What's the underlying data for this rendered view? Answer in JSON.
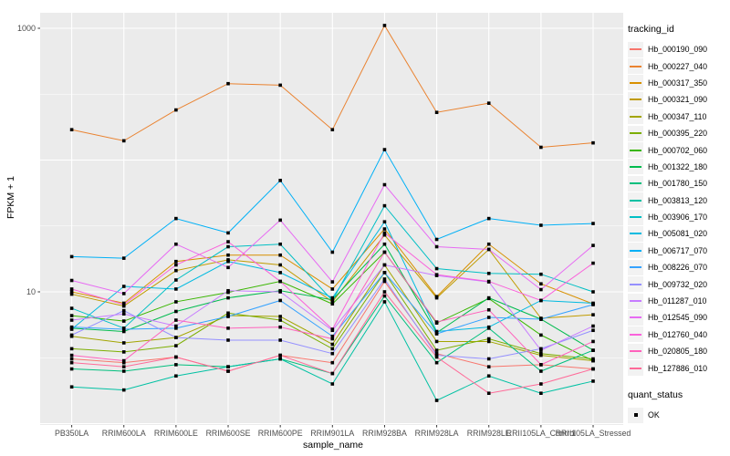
{
  "chart_data": {
    "type": "line",
    "title": "",
    "xlabel": "sample_name",
    "ylabel": "FPKM + 1",
    "y_scale": "log10",
    "ylim": [
      1,
      1500
    ],
    "y_tick_values": [
      10,
      1000
    ],
    "y_tick_labels": [
      "10",
      "1000"
    ],
    "y_grid_major": [
      1,
      10,
      100,
      1000
    ],
    "y_grid_minor": [
      3.162,
      31.62,
      316.2
    ],
    "grid_color": "#FFFFFF",
    "panel_bg": "#EBEBEB",
    "point_shape": "filled-square",
    "point_color": "#000000",
    "legend_position": "right",
    "categories": [
      "PB350LA",
      "RRIM600LA",
      "RRIM600LE",
      "RRIM600SE",
      "RRIM600PE",
      "RRIM901LA",
      "RRIM928BA",
      "RRIM928LA",
      "RRIM928LE",
      "RRII105LA_Control",
      "RRII105LA_Stressed"
    ],
    "series": [
      {
        "name": "Hb_000190_090",
        "color": "#F8766D",
        "values": [
          3.1,
          2.9,
          3.2,
          2.5,
          3.3,
          2.9,
          12,
          3.4,
          2.7,
          2.8,
          2.6
        ]
      },
      {
        "name": "Hb_000227_040",
        "color": "#EA8331",
        "values": [
          170,
          140,
          240,
          380,
          370,
          170,
          1050,
          230,
          270,
          125,
          135
        ]
      },
      {
        "name": "Hb_000317_350",
        "color": "#D89000",
        "values": [
          10,
          8.2,
          17,
          19,
          19,
          10.5,
          30,
          9.2,
          23,
          11.5,
          8.1
        ]
      },
      {
        "name": "Hb_000321_090",
        "color": "#C09B00",
        "values": [
          9.6,
          7.8,
          14.5,
          17.5,
          16,
          8.4,
          27,
          9.0,
          21,
          6.3,
          6.7
        ]
      },
      {
        "name": "Hb_000347_110",
        "color": "#A3A500",
        "values": [
          4.6,
          4.1,
          4.5,
          6.6,
          6.5,
          4.0,
          16,
          4.2,
          4.2,
          3.3,
          3.0
        ]
      },
      {
        "name": "Hb_000395_220",
        "color": "#7CAE00",
        "values": [
          3.7,
          3.5,
          3.9,
          6.9,
          6.1,
          3.7,
          14,
          3.6,
          4.4,
          3.4,
          3.1
        ]
      },
      {
        "name": "Hb_000702_060",
        "color": "#39B600",
        "values": [
          6.6,
          6.0,
          8.4,
          9.9,
          12,
          8.1,
          20,
          5.8,
          8.9,
          4.7,
          3.0
        ]
      },
      {
        "name": "Hb_001322_180",
        "color": "#00BB4E",
        "values": [
          5.3,
          5.0,
          7.1,
          9.0,
          10.2,
          8.7,
          23,
          4.9,
          9.0,
          6.2,
          3.6
        ]
      },
      {
        "name": "Hb_001780_150",
        "color": "#00BF7D",
        "values": [
          2.6,
          2.5,
          2.8,
          2.7,
          3.1,
          2.4,
          9.3,
          2.9,
          5.3,
          2.5,
          3.6
        ]
      },
      {
        "name": "Hb_003813_120",
        "color": "#00C1A3",
        "values": [
          1.9,
          1.8,
          2.3,
          2.7,
          3.1,
          2.0,
          8.4,
          1.5,
          2.3,
          1.7,
          2.1
        ]
      },
      {
        "name": "Hb_003906_170",
        "color": "#00BFC4",
        "values": [
          7.5,
          5.3,
          12.3,
          22,
          23,
          8.6,
          45,
          15,
          13.8,
          13.6,
          10
        ]
      },
      {
        "name": "Hb_005081_020",
        "color": "#00BAE0",
        "values": [
          5.2,
          11,
          10.5,
          17,
          14,
          9.0,
          34,
          5.0,
          5.4,
          8.6,
          8.2
        ]
      },
      {
        "name": "Hb_006717_070",
        "color": "#00B0F6",
        "values": [
          18.5,
          18,
          36,
          28,
          70,
          20,
          120,
          25,
          36,
          32,
          33
        ]
      },
      {
        "name": "Hb_008226_070",
        "color": "#35A2FF",
        "values": [
          5.4,
          5.2,
          5.3,
          6.5,
          8.6,
          4.6,
          14,
          4.8,
          6.4,
          6.2,
          8.0
        ]
      },
      {
        "name": "Hb_009732_020",
        "color": "#9590FF",
        "values": [
          4.7,
          7.2,
          4.5,
          4.3,
          4.3,
          3.4,
          12.5,
          3.3,
          3.1,
          3.7,
          5.1
        ]
      },
      {
        "name": "Hb_011287_010",
        "color": "#C77CFF",
        "values": [
          6.1,
          6.8,
          5.5,
          10.2,
          10,
          5.1,
          16,
          13.3,
          11.9,
          3.6,
          5.5
        ]
      },
      {
        "name": "Hb_012545_090",
        "color": "#E76BF3",
        "values": [
          12.2,
          9.7,
          23,
          15.3,
          35,
          11.9,
          65,
          22,
          21,
          10.4,
          22.5
        ]
      },
      {
        "name": "Hb_012760_040",
        "color": "#FA62DB",
        "values": [
          10.5,
          8.0,
          16,
          24,
          12,
          5.2,
          28,
          13.5,
          12,
          8.6,
          16.5
        ]
      },
      {
        "name": "Hb_020805_180",
        "color": "#FF62BC",
        "values": [
          3.3,
          3.0,
          6.1,
          5.3,
          5.4,
          4.4,
          20,
          5.9,
          7.3,
          2.8,
          4.2
        ]
      },
      {
        "name": "Hb_127886_010",
        "color": "#FF6A98",
        "values": [
          2.9,
          2.7,
          3.2,
          2.5,
          3.3,
          2.4,
          10,
          3.2,
          1.7,
          2.0,
          2.6
        ]
      }
    ]
  },
  "legend": {
    "tracking_title": "tracking_id",
    "quant_title": "quant_status",
    "quant_ok_label": "OK"
  },
  "axis": {
    "tick_label_color": "#4D4D4D"
  }
}
